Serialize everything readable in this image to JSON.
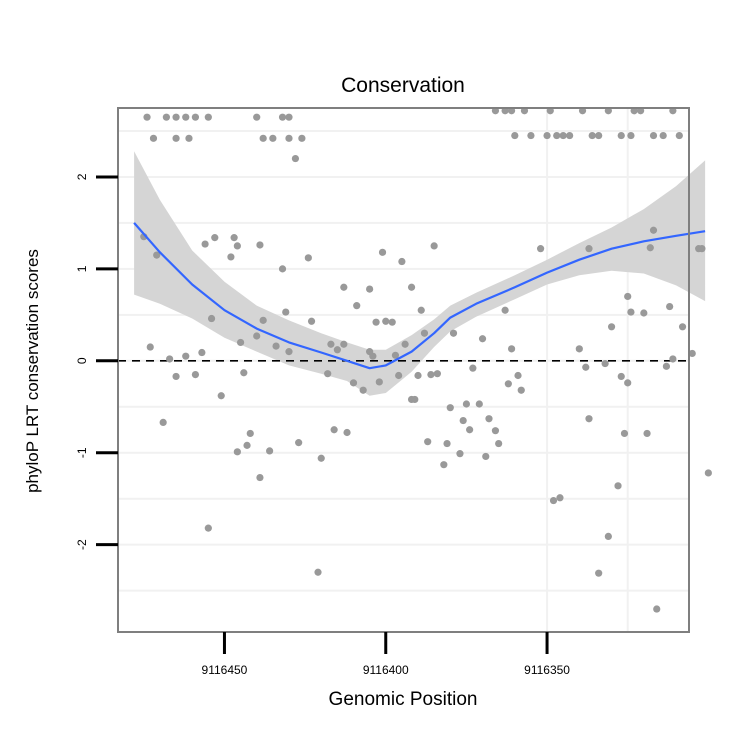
{
  "chart_data": {
    "type": "scatter",
    "title": "Conservation",
    "xlabel": "Genomic Position",
    "ylabel": "phyloP LRT conservation scores",
    "x_reversed": true,
    "xlim": [
      9116483,
      9116306
    ],
    "ylim": [
      -2.95,
      2.75
    ],
    "x_ticks": [
      {
        "value": 9116450,
        "label": "9116450"
      },
      {
        "value": 9116400,
        "label": "9116400"
      },
      {
        "value": 9116350,
        "label": "9116350"
      }
    ],
    "y_ticks": [
      {
        "value": -2,
        "label": "-2"
      },
      {
        "value": -1,
        "label": "-1"
      },
      {
        "value": 0,
        "label": "0"
      },
      {
        "value": 1,
        "label": "1"
      },
      {
        "value": 2,
        "label": "2"
      }
    ],
    "reference_line": {
      "y": 0,
      "style": "dashed"
    },
    "colors": {
      "points": "#999999",
      "smooth": "#3366ff",
      "band": "#d3d3d3",
      "grid": "#f1f1f1",
      "border": "#7f7f7f"
    },
    "points": [
      [
        9116474,
        2.65
      ],
      [
        9116468,
        2.65
      ],
      [
        9116465,
        2.65
      ],
      [
        9116462,
        2.65
      ],
      [
        9116459,
        2.65
      ],
      [
        9116455,
        2.65
      ],
      [
        9116472,
        2.42
      ],
      [
        9116465,
        2.42
      ],
      [
        9116461,
        2.42
      ],
      [
        9116440,
        2.65
      ],
      [
        9116432,
        2.65
      ],
      [
        9116430,
        2.65
      ],
      [
        9116438,
        2.42
      ],
      [
        9116435,
        2.42
      ],
      [
        9116430,
        2.42
      ],
      [
        9116426,
        2.42
      ],
      [
        9116428,
        2.2
      ],
      [
        9116475,
        1.35
      ],
      [
        9116471,
        1.15
      ],
      [
        9116456,
        1.27
      ],
      [
        9116453,
        1.34
      ],
      [
        9116447,
        1.34
      ],
      [
        9116446,
        1.25
      ],
      [
        9116448,
        1.13
      ],
      [
        9116439,
        1.26
      ],
      [
        9116432,
        1.0
      ],
      [
        9116424,
        1.12
      ],
      [
        9116413,
        0.8
      ],
      [
        9116405,
        0.78
      ],
      [
        9116401,
        1.18
      ],
      [
        9116395,
        1.08
      ],
      [
        9116392,
        0.8
      ],
      [
        9116385,
        1.25
      ],
      [
        9116389,
        0.55
      ],
      [
        9116473,
        0.15
      ],
      [
        9116469,
        -0.67
      ],
      [
        9116467,
        0.02
      ],
      [
        9116465,
        -0.17
      ],
      [
        9116462,
        0.05
      ],
      [
        9116459,
        -0.15
      ],
      [
        9116457,
        0.09
      ],
      [
        9116455,
        -1.82
      ],
      [
        9116454,
        0.46
      ],
      [
        9116451,
        -0.38
      ],
      [
        9116445,
        0.2
      ],
      [
        9116444,
        -0.13
      ],
      [
        9116443,
        -0.92
      ],
      [
        9116442,
        -0.79
      ],
      [
        9116440,
        0.27
      ],
      [
        9116439,
        -1.27
      ],
      [
        9116438,
        0.44
      ],
      [
        9116446,
        -0.99
      ],
      [
        9116436,
        -0.98
      ],
      [
        9116434,
        0.16
      ],
      [
        9116431,
        0.53
      ],
      [
        9116430,
        0.1
      ],
      [
        9116427,
        -0.89
      ],
      [
        9116423,
        0.43
      ],
      [
        9116421,
        -2.3
      ],
      [
        9116420,
        -1.06
      ],
      [
        9116418,
        -0.14
      ],
      [
        9116417,
        0.18
      ],
      [
        9116416,
        -0.75
      ],
      [
        9116415,
        0.12
      ],
      [
        9116413,
        0.18
      ],
      [
        9116412,
        -0.78
      ],
      [
        9116410,
        -0.24
      ],
      [
        9116409,
        0.6
      ],
      [
        9116407,
        -0.32
      ],
      [
        9116405,
        0.1
      ],
      [
        9116404,
        0.05
      ],
      [
        9116403,
        0.42
      ],
      [
        9116402,
        -0.23
      ],
      [
        9116400,
        0.43
      ],
      [
        9116398,
        0.42
      ],
      [
        9116397,
        0.06
      ],
      [
        9116396,
        -0.16
      ],
      [
        9116394,
        0.18
      ],
      [
        9116392,
        -0.42
      ],
      [
        9116391,
        -0.42
      ],
      [
        9116390,
        -0.16
      ],
      [
        9116388,
        0.3
      ],
      [
        9116387,
        -0.88
      ],
      [
        9116386,
        -0.15
      ],
      [
        9116384,
        -0.14
      ],
      [
        9116382,
        -1.13
      ],
      [
        9116381,
        -0.9
      ],
      [
        9116380,
        -0.51
      ],
      [
        9116379,
        0.3
      ],
      [
        9116377,
        -1.01
      ],
      [
        9116376,
        -0.65
      ],
      [
        9116375,
        -0.47
      ],
      [
        9116374,
        -0.75
      ],
      [
        9116373,
        -0.08
      ],
      [
        9116371,
        -0.47
      ],
      [
        9116370,
        0.24
      ],
      [
        9116369,
        -1.04
      ],
      [
        9116368,
        -0.63
      ],
      [
        9116366,
        -0.76
      ],
      [
        9116365,
        -0.9
      ],
      [
        9116363,
        0.55
      ],
      [
        9116362,
        -0.25
      ],
      [
        9116361,
        0.13
      ],
      [
        9116359,
        -0.16
      ],
      [
        9116358,
        -0.32
      ],
      [
        9116366,
        2.72
      ],
      [
        9116363,
        2.72
      ],
      [
        9116361,
        2.72
      ],
      [
        9116357,
        2.72
      ],
      [
        9116349,
        2.72
      ],
      [
        9116339,
        2.72
      ],
      [
        9116331,
        2.72
      ],
      [
        9116323,
        2.72
      ],
      [
        9116321,
        2.72
      ],
      [
        9116311,
        2.72
      ],
      [
        9116360,
        2.45
      ],
      [
        9116355,
        2.45
      ],
      [
        9116350,
        2.45
      ],
      [
        9116347,
        2.45
      ],
      [
        9116345,
        2.45
      ],
      [
        9116343,
        2.45
      ],
      [
        9116336,
        2.45
      ],
      [
        9116334,
        2.45
      ],
      [
        9116327,
        2.45
      ],
      [
        9116324,
        2.45
      ],
      [
        9116317,
        2.45
      ],
      [
        9116314,
        2.45
      ],
      [
        9116309,
        2.45
      ],
      [
        9116352,
        1.22
      ],
      [
        9116348,
        -1.52
      ],
      [
        9116346,
        -1.49
      ],
      [
        9116340,
        0.13
      ],
      [
        9116338,
        -0.07
      ],
      [
        9116337,
        1.22
      ],
      [
        9116337,
        -0.63
      ],
      [
        9116334,
        -2.31
      ],
      [
        9116332,
        -0.03
      ],
      [
        9116331,
        -1.91
      ],
      [
        9116330,
        0.37
      ],
      [
        9116328,
        -1.36
      ],
      [
        9116327,
        -0.17
      ],
      [
        9116326,
        -0.79
      ],
      [
        9116325,
        -0.24
      ],
      [
        9116325,
        0.7
      ],
      [
        9116324,
        0.53
      ],
      [
        9116320,
        0.52
      ],
      [
        9116319,
        -0.79
      ],
      [
        9116318,
        1.23
      ],
      [
        9116317,
        1.42
      ],
      [
        9116316,
        -2.7
      ],
      [
        9116313,
        -0.06
      ],
      [
        9116312,
        0.59
      ],
      [
        9116311,
        0.02
      ],
      [
        9116308,
        0.37
      ],
      [
        9116305,
        0.08
      ],
      [
        9116303,
        1.22
      ],
      [
        9116302,
        1.22
      ],
      [
        9116300,
        -1.22
      ]
    ],
    "smooth": [
      [
        9116478,
        1.5
      ],
      [
        9116470,
        1.18
      ],
      [
        9116460,
        0.83
      ],
      [
        9116450,
        0.55
      ],
      [
        9116440,
        0.35
      ],
      [
        9116430,
        0.2
      ],
      [
        9116420,
        0.09
      ],
      [
        9116412,
        0.0
      ],
      [
        9116405,
        -0.08
      ],
      [
        9116400,
        -0.05
      ],
      [
        9116392,
        0.1
      ],
      [
        9116385,
        0.3
      ],
      [
        9116380,
        0.47
      ],
      [
        9116372,
        0.62
      ],
      [
        9116360,
        0.8
      ],
      [
        9116350,
        0.96
      ],
      [
        9116340,
        1.1
      ],
      [
        9116330,
        1.22
      ],
      [
        9116320,
        1.3
      ],
      [
        9116310,
        1.36
      ],
      [
        9116301,
        1.41
      ]
    ],
    "band_upper": [
      [
        9116478,
        2.28
      ],
      [
        9116470,
        1.75
      ],
      [
        9116460,
        1.2
      ],
      [
        9116450,
        0.86
      ],
      [
        9116440,
        0.6
      ],
      [
        9116430,
        0.44
      ],
      [
        9116420,
        0.3
      ],
      [
        9116412,
        0.2
      ],
      [
        9116405,
        0.12
      ],
      [
        9116400,
        0.12
      ],
      [
        9116392,
        0.28
      ],
      [
        9116385,
        0.45
      ],
      [
        9116380,
        0.6
      ],
      [
        9116372,
        0.74
      ],
      [
        9116360,
        0.93
      ],
      [
        9116350,
        1.1
      ],
      [
        9116340,
        1.28
      ],
      [
        9116330,
        1.45
      ],
      [
        9116320,
        1.65
      ],
      [
        9116310,
        1.9
      ],
      [
        9116301,
        2.18
      ]
    ],
    "band_lower": [
      [
        9116478,
        0.72
      ],
      [
        9116470,
        0.62
      ],
      [
        9116460,
        0.46
      ],
      [
        9116450,
        0.25
      ],
      [
        9116440,
        0.1
      ],
      [
        9116430,
        -0.05
      ],
      [
        9116420,
        -0.14
      ],
      [
        9116412,
        -0.22
      ],
      [
        9116405,
        -0.38
      ],
      [
        9116400,
        -0.35
      ],
      [
        9116392,
        -0.12
      ],
      [
        9116385,
        0.15
      ],
      [
        9116380,
        0.32
      ],
      [
        9116372,
        0.48
      ],
      [
        9116360,
        0.67
      ],
      [
        9116350,
        0.83
      ],
      [
        9116340,
        0.93
      ],
      [
        9116330,
        0.98
      ],
      [
        9116320,
        0.95
      ],
      [
        9116310,
        0.82
      ],
      [
        9116301,
        0.65
      ]
    ]
  }
}
